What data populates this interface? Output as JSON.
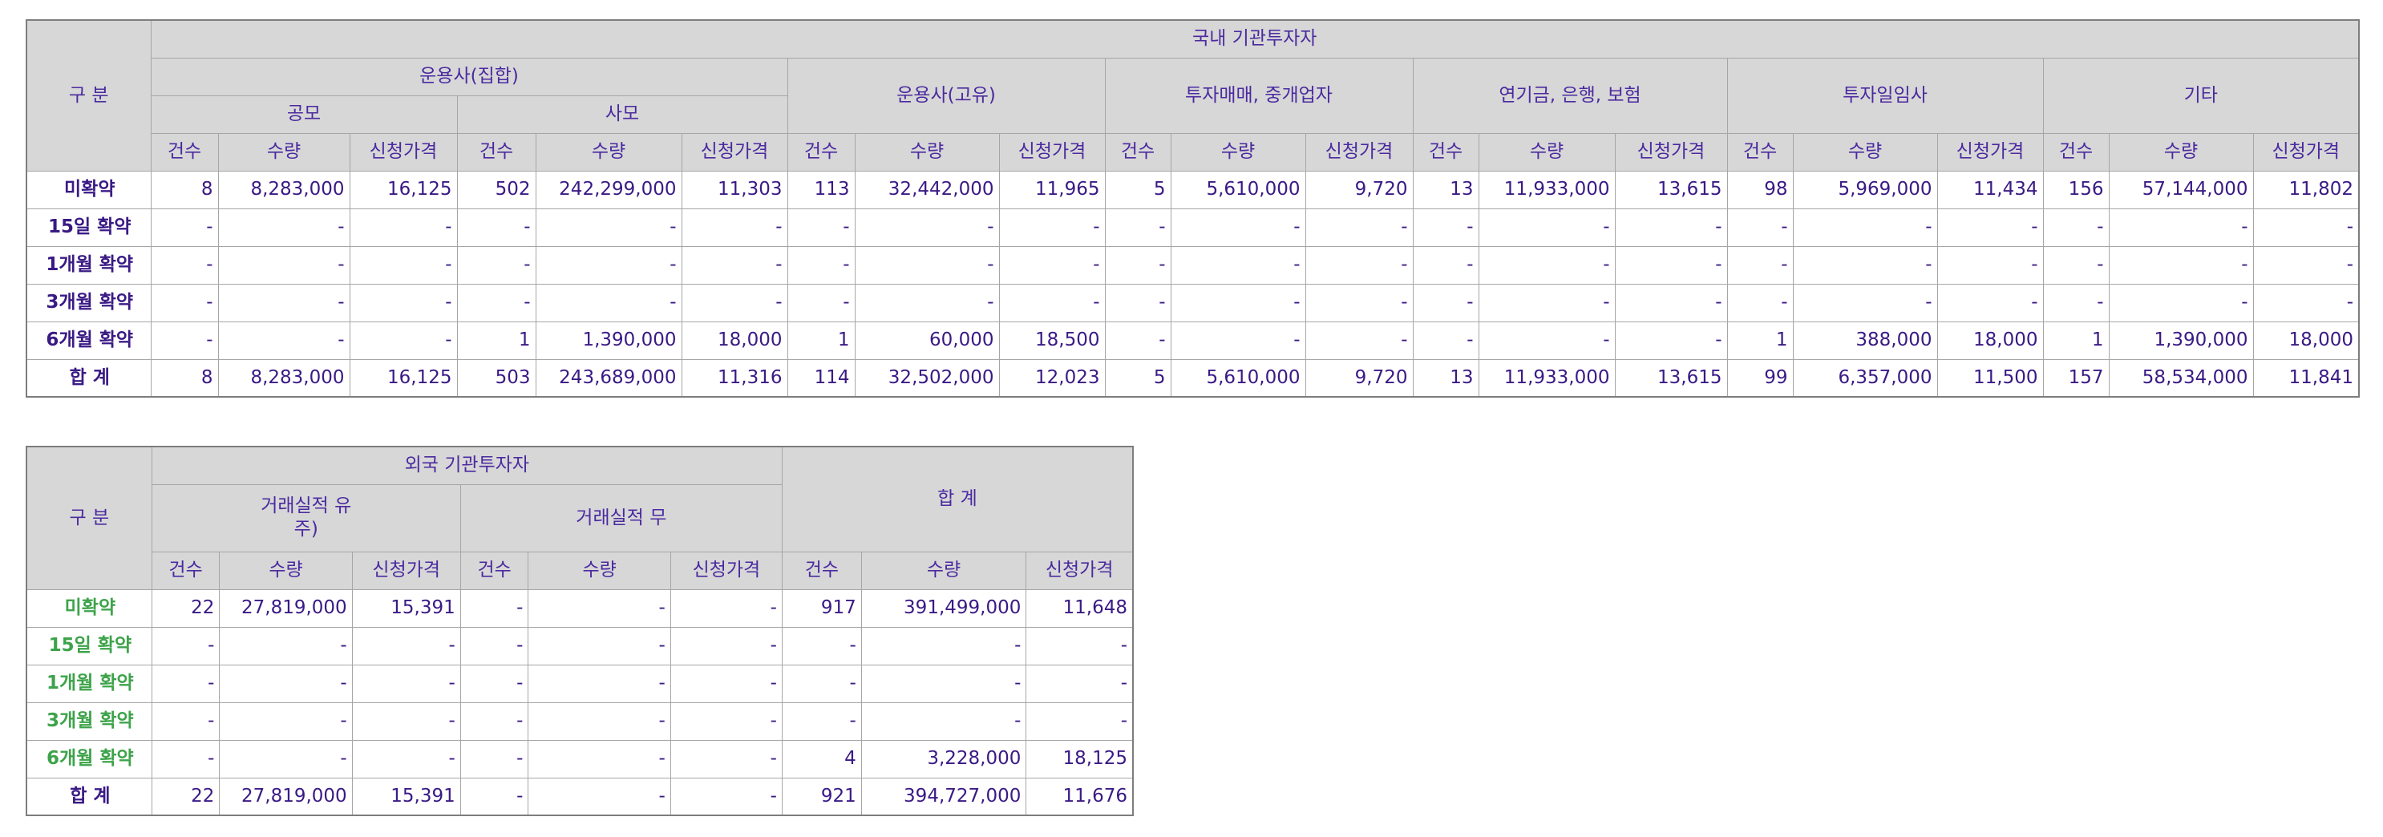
{
  "domestic": {
    "corner": "구 분",
    "title": "국내 기관투자자",
    "groups": [
      {
        "label": "운용사(집합)",
        "subs": [
          "공모",
          "사모"
        ]
      },
      {
        "label": "운용사(고유)"
      },
      {
        "label": "투자매매, 중개업자"
      },
      {
        "label": "연기금, 은행, 보험"
      },
      {
        "label": "투자일임사"
      },
      {
        "label": "기타"
      }
    ],
    "cols": [
      "건수",
      "수량",
      "신청가격"
    ],
    "rows": [
      {
        "label": "미확약",
        "cells": [
          "8",
          "8,283,000",
          "16,125",
          "502",
          "242,299,000",
          "11,303",
          "113",
          "32,442,000",
          "11,965",
          "5",
          "5,610,000",
          "9,720",
          "13",
          "11,933,000",
          "13,615",
          "98",
          "5,969,000",
          "11,434",
          "156",
          "57,144,000",
          "11,802"
        ]
      },
      {
        "label": "15일 확약",
        "cells": [
          "-",
          "-",
          "-",
          "-",
          "-",
          "-",
          "-",
          "-",
          "-",
          "-",
          "-",
          "-",
          "-",
          "-",
          "-",
          "-",
          "-",
          "-",
          "-",
          "-",
          "-"
        ]
      },
      {
        "label": "1개월 확약",
        "cells": [
          "-",
          "-",
          "-",
          "-",
          "-",
          "-",
          "-",
          "-",
          "-",
          "-",
          "-",
          "-",
          "-",
          "-",
          "-",
          "-",
          "-",
          "-",
          "-",
          "-",
          "-"
        ]
      },
      {
        "label": "3개월 확약",
        "cells": [
          "-",
          "-",
          "-",
          "-",
          "-",
          "-",
          "-",
          "-",
          "-",
          "-",
          "-",
          "-",
          "-",
          "-",
          "-",
          "-",
          "-",
          "-",
          "-",
          "-",
          "-"
        ]
      },
      {
        "label": "6개월 확약",
        "cells": [
          "-",
          "-",
          "-",
          "1",
          "1,390,000",
          "18,000",
          "1",
          "60,000",
          "18,500",
          "-",
          "-",
          "-",
          "-",
          "-",
          "-",
          "1",
          "388,000",
          "18,000",
          "1",
          "1,390,000",
          "18,000"
        ]
      },
      {
        "label": "합 계",
        "cells": [
          "8",
          "8,283,000",
          "16,125",
          "503",
          "243,689,000",
          "11,316",
          "114",
          "32,502,000",
          "12,023",
          "5",
          "5,610,000",
          "9,720",
          "13",
          "11,933,000",
          "13,615",
          "99",
          "6,357,000",
          "11,500",
          "157",
          "58,534,000",
          "11,841"
        ]
      }
    ]
  },
  "foreign": {
    "corner": "구 분",
    "title": "외국 기관투자자",
    "groups": [
      {
        "label": "거래실적 유\n주)"
      },
      {
        "label": "거래실적 무"
      }
    ],
    "total_label": "합 계",
    "cols": [
      "건수",
      "수량",
      "신청가격"
    ],
    "rows": [
      {
        "label": "미확약",
        "cells": [
          "22",
          "27,819,000",
          "15,391",
          "-",
          "-",
          "-",
          "917",
          "391,499,000",
          "11,648"
        ]
      },
      {
        "label": "15일 확약",
        "cells": [
          "-",
          "-",
          "-",
          "-",
          "-",
          "-",
          "-",
          "-",
          "-"
        ]
      },
      {
        "label": "1개월 확약",
        "cells": [
          "-",
          "-",
          "-",
          "-",
          "-",
          "-",
          "-",
          "-",
          "-"
        ]
      },
      {
        "label": "3개월 확약",
        "cells": [
          "-",
          "-",
          "-",
          "-",
          "-",
          "-",
          "-",
          "-",
          "-"
        ]
      },
      {
        "label": "6개월 확약",
        "cells": [
          "-",
          "-",
          "-",
          "-",
          "-",
          "-",
          "4",
          "3,228,000",
          "18,125"
        ]
      },
      {
        "label": "합 계",
        "cells": [
          "22",
          "27,819,000",
          "15,391",
          "-",
          "-",
          "-",
          "921",
          "394,727,000",
          "11,676"
        ]
      }
    ]
  }
}
